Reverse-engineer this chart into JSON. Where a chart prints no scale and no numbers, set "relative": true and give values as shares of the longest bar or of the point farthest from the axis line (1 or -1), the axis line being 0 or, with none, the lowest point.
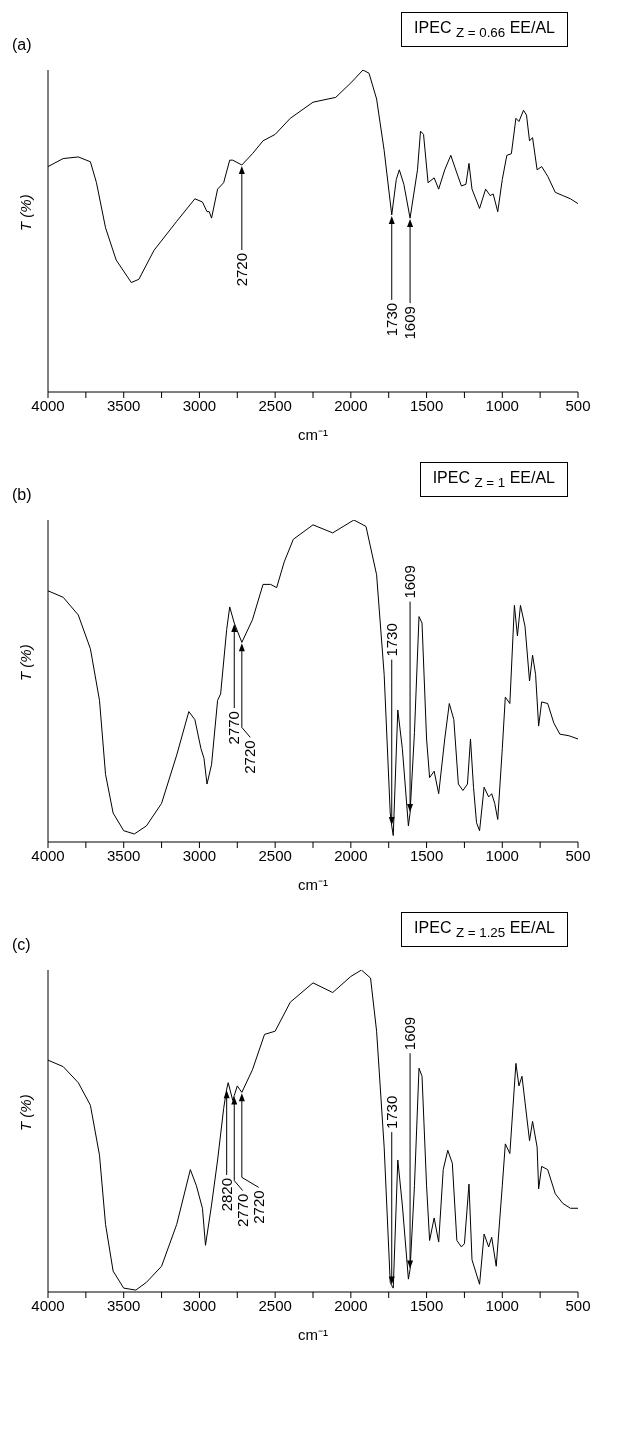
{
  "chart_data": [
    {
      "type": "line",
      "title": "(a)",
      "subtitle": "IPEC $_{Z = 0.66}$ EE/AL",
      "xlabel": "cm⁻¹",
      "ylabel": "T (%)",
      "relative": true,
      "xlim": [
        4000,
        500
      ],
      "xticks": [
        4000,
        {
          "value": 3750,
          "label": null
        },
        3500,
        {
          "value": 3250,
          "label": null
        },
        3000,
        {
          "value": 2750,
          "label": null
        },
        2500,
        {
          "value": 2250,
          "label": null
        },
        2000,
        {
          "value": 1750,
          "label": null
        },
        1500,
        {
          "value": 1250,
          "label": null
        },
        1000,
        {
          "value": 750,
          "label": null
        },
        500
      ],
      "x": [
        4000,
        3900,
        3800,
        3720,
        3680,
        3620,
        3550,
        3450,
        3400,
        3300,
        3150,
        3030,
        2980,
        2950,
        2935,
        2920,
        2880,
        2840,
        2800,
        2780,
        2720,
        2650,
        2580,
        2500,
        2400,
        2250,
        2100,
        2000,
        1920,
        1880,
        1830,
        1780,
        1730,
        1700,
        1680,
        1650,
        1609,
        1560,
        1540,
        1520,
        1490,
        1450,
        1420,
        1380,
        1340,
        1300,
        1270,
        1240,
        1220,
        1200,
        1150,
        1110,
        1080,
        1060,
        1030,
        1000,
        970,
        940,
        910,
        890,
        860,
        840,
        820,
        800,
        770,
        740,
        700,
        650,
        600,
        550,
        500
      ],
      "series": [
        {
          "color": "#000000",
          "values": [
            0.7,
            0.725,
            0.73,
            0.715,
            0.65,
            0.51,
            0.41,
            0.34,
            0.35,
            0.44,
            0.53,
            0.6,
            0.59,
            0.56,
            0.56,
            0.54,
            0.63,
            0.65,
            0.72,
            0.72,
            0.705,
            0.74,
            0.78,
            0.8,
            0.85,
            0.9,
            0.915,
            0.96,
            1.0,
            0.99,
            0.91,
            0.75,
            0.55,
            0.66,
            0.69,
            0.645,
            0.54,
            0.69,
            0.81,
            0.8,
            0.65,
            0.665,
            0.63,
            0.69,
            0.735,
            0.68,
            0.64,
            0.645,
            0.71,
            0.63,
            0.57,
            0.63,
            0.61,
            0.615,
            0.56,
            0.66,
            0.735,
            0.74,
            0.85,
            0.84,
            0.875,
            0.86,
            0.78,
            0.79,
            0.69,
            0.7,
            0.67,
            0.62,
            0.61,
            0.6,
            0.585
          ]
        }
      ],
      "annotations": [
        {
          "text": "2720",
          "x": 2720,
          "y": 0.705
        },
        {
          "text": "1730",
          "x": 1730,
          "y": 0.55
        },
        {
          "text": "1609",
          "x": 1609,
          "y": 0.54
        }
      ]
    },
    {
      "type": "line",
      "title": "(b)",
      "subtitle": "IPEC $_{Z = 1}$ EE/AL",
      "xlabel": "cm⁻¹",
      "ylabel": "T (%)",
      "relative": true,
      "xlim": [
        4000,
        500
      ],
      "xticks": [
        4000,
        {
          "value": 3750,
          "label": null
        },
        3500,
        {
          "value": 3250,
          "label": null
        },
        3000,
        {
          "value": 2750,
          "label": null
        },
        2500,
        {
          "value": 2250,
          "label": null
        },
        2000,
        {
          "value": 1750,
          "label": null
        },
        1500,
        {
          "value": 1250,
          "label": null
        },
        1000,
        {
          "value": 750,
          "label": null
        },
        500
      ],
      "x": [
        4000,
        3900,
        3800,
        3720,
        3660,
        3620,
        3570,
        3500,
        3430,
        3350,
        3250,
        3150,
        3070,
        3030,
        2990,
        2970,
        2950,
        2920,
        2880,
        2860,
        2820,
        2800,
        2770,
        2720,
        2650,
        2580,
        2530,
        2490,
        2440,
        2380,
        2250,
        2120,
        1980,
        1900,
        1830,
        1780,
        1740,
        1730,
        1720,
        1690,
        1660,
        1620,
        1609,
        1580,
        1550,
        1530,
        1500,
        1480,
        1450,
        1420,
        1380,
        1350,
        1320,
        1290,
        1260,
        1230,
        1210,
        1190,
        1170,
        1150,
        1120,
        1090,
        1070,
        1050,
        1030,
        1000,
        980,
        950,
        920,
        900,
        880,
        850,
        820,
        800,
        780,
        760,
        740,
        700,
        660,
        620,
        560,
        500
      ],
      "series": [
        {
          "color": "#000000",
          "values": [
            0.78,
            0.76,
            0.705,
            0.6,
            0.44,
            0.21,
            0.09,
            0.035,
            0.025,
            0.05,
            0.12,
            0.27,
            0.405,
            0.38,
            0.29,
            0.26,
            0.18,
            0.24,
            0.44,
            0.46,
            0.66,
            0.73,
            0.68,
            0.62,
            0.69,
            0.8,
            0.8,
            0.79,
            0.87,
            0.94,
            0.985,
            0.96,
            1.0,
            0.98,
            0.83,
            0.52,
            0.09,
            0.05,
            0.02,
            0.41,
            0.29,
            0.05,
            0.09,
            0.34,
            0.7,
            0.68,
            0.32,
            0.2,
            0.22,
            0.15,
            0.32,
            0.43,
            0.38,
            0.18,
            0.16,
            0.18,
            0.32,
            0.17,
            0.06,
            0.035,
            0.17,
            0.14,
            0.15,
            0.12,
            0.07,
            0.29,
            0.45,
            0.43,
            0.735,
            0.64,
            0.735,
            0.67,
            0.5,
            0.58,
            0.52,
            0.36,
            0.435,
            0.43,
            0.37,
            0.335,
            0.33,
            0.32
          ]
        }
      ],
      "annotations": [
        {
          "text": "2770",
          "x": 2770,
          "y": 0.68
        },
        {
          "text": "2720",
          "x": 2720,
          "y": 0.62
        },
        {
          "text": "1730",
          "x": 1730,
          "y": 0.05
        },
        {
          "text": "1609",
          "x": 1609,
          "y": 0.09
        }
      ]
    },
    {
      "type": "line",
      "title": "(c)",
      "subtitle": "IPEC $_{Z = 1.25}$ EE/AL",
      "xlabel": "cm⁻¹",
      "ylabel": "T (%)",
      "relative": true,
      "xlim": [
        4000,
        500
      ],
      "xticks": [
        4000,
        {
          "value": 3750,
          "label": null
        },
        3500,
        {
          "value": 3250,
          "label": null
        },
        3000,
        {
          "value": 2750,
          "label": null
        },
        2500,
        {
          "value": 2250,
          "label": null
        },
        2000,
        {
          "value": 1750,
          "label": null
        },
        1500,
        {
          "value": 1250,
          "label": null
        },
        1000,
        {
          "value": 750,
          "label": null
        },
        500
      ],
      "x": [
        4000,
        3900,
        3800,
        3720,
        3660,
        3620,
        3570,
        3500,
        3420,
        3350,
        3250,
        3150,
        3060,
        3020,
        2980,
        2960,
        2920,
        2880,
        2840,
        2820,
        2810,
        2780,
        2770,
        2750,
        2720,
        2650,
        2570,
        2500,
        2400,
        2250,
        2120,
        2000,
        1930,
        1870,
        1830,
        1780,
        1740,
        1730,
        1720,
        1690,
        1660,
        1620,
        1609,
        1580,
        1550,
        1530,
        1500,
        1480,
        1450,
        1420,
        1390,
        1360,
        1330,
        1300,
        1270,
        1250,
        1220,
        1200,
        1150,
        1120,
        1090,
        1070,
        1040,
        1000,
        980,
        950,
        910,
        890,
        870,
        850,
        820,
        800,
        770,
        760,
        740,
        700,
        650,
        600,
        550,
        500
      ],
      "series": [
        {
          "color": "#000000",
          "values": [
            0.72,
            0.7,
            0.65,
            0.58,
            0.425,
            0.21,
            0.065,
            0.012,
            0.006,
            0.03,
            0.08,
            0.21,
            0.38,
            0.33,
            0.26,
            0.145,
            0.27,
            0.41,
            0.57,
            0.63,
            0.65,
            0.595,
            0.61,
            0.64,
            0.62,
            0.69,
            0.8,
            0.81,
            0.9,
            0.96,
            0.93,
            0.98,
            1.0,
            0.975,
            0.81,
            0.45,
            0.03,
            0.02,
            0.012,
            0.41,
            0.27,
            0.04,
            0.07,
            0.33,
            0.695,
            0.67,
            0.33,
            0.16,
            0.23,
            0.155,
            0.38,
            0.44,
            0.4,
            0.16,
            0.14,
            0.15,
            0.335,
            0.1,
            0.024,
            0.18,
            0.14,
            0.17,
            0.08,
            0.33,
            0.46,
            0.43,
            0.71,
            0.64,
            0.67,
            0.59,
            0.47,
            0.53,
            0.45,
            0.32,
            0.39,
            0.38,
            0.305,
            0.275,
            0.26,
            0.26
          ]
        }
      ],
      "annotations": [
        {
          "text": "2820",
          "x": 2820,
          "y": 0.63
        },
        {
          "text": "2770",
          "x": 2770,
          "y": 0.61
        },
        {
          "text": "2720",
          "x": 2720,
          "y": 0.62
        },
        {
          "text": "1730",
          "x": 1730,
          "y": 0.02
        },
        {
          "text": "1609",
          "x": 1609,
          "y": 0.07
        }
      ]
    }
  ]
}
